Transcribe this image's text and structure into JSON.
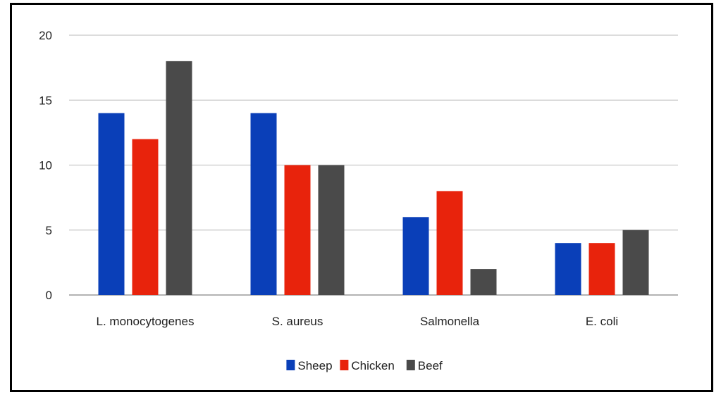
{
  "chart_data": {
    "type": "bar",
    "title": "",
    "xlabel": "",
    "ylabel": "",
    "categories": [
      "L. monocytogenes",
      "S. aureus",
      "Salmonella",
      "E. coli"
    ],
    "series": [
      {
        "name": "Sheep",
        "color": "#0a3fb8",
        "values": [
          14,
          14,
          6,
          4
        ]
      },
      {
        "name": "Chicken",
        "color": "#e8230c",
        "values": [
          12,
          10,
          8,
          4
        ]
      },
      {
        "name": "Beef",
        "color": "#4a4a4a",
        "values": [
          18,
          10,
          2,
          5
        ]
      }
    ],
    "ylim": [
      0,
      20
    ],
    "yticks": [
      "0",
      "5",
      "10",
      "15",
      "20"
    ],
    "grid": true,
    "legend_position": "bottom"
  }
}
